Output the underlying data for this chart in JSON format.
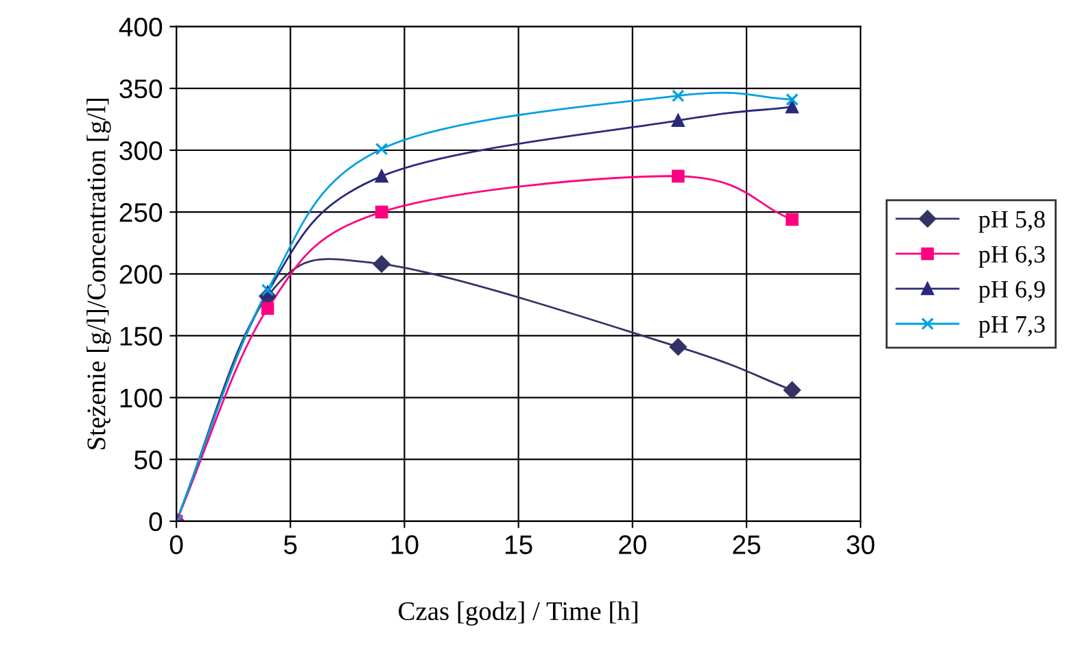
{
  "chart_data": {
    "type": "line",
    "xlabel": "Czas [godz] / Time [h]",
    "ylabel": "Stężenie [g/l]/Concentration [g/l]",
    "x": [
      0,
      4,
      9,
      22,
      27
    ],
    "series": [
      {
        "name": "pH 5,8",
        "color": "#333366",
        "marker": "diamond",
        "values": [
          0,
          182,
          208,
          141,
          106
        ]
      },
      {
        "name": "pH 6,3",
        "color": "#ff0080",
        "marker": "square",
        "values": [
          0,
          172,
          250,
          279,
          244
        ]
      },
      {
        "name": "pH 6,9",
        "color": "#2a2a7a",
        "marker": "triangle",
        "values": [
          0,
          185,
          279,
          324,
          335
        ]
      },
      {
        "name": "pH 7,3",
        "color": "#00a0e0",
        "marker": "cross",
        "values": [
          0,
          187,
          301,
          344,
          341
        ]
      }
    ],
    "xlim": [
      0,
      30
    ],
    "xticks": [
      0,
      5,
      10,
      15,
      20,
      25,
      30
    ],
    "ylim": [
      0,
      400
    ],
    "yticks": [
      0,
      50,
      100,
      150,
      200,
      250,
      300,
      350,
      400
    ],
    "grid": true,
    "legend": "right",
    "line_style": "solid"
  }
}
